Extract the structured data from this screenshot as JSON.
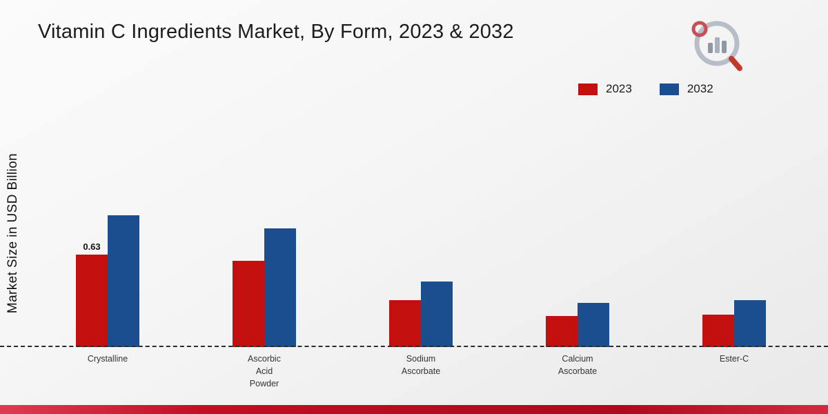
{
  "title": "Vitamin C Ingredients Market, By Form, 2023 & 2032",
  "ylabel": "Market Size in USD Billion",
  "legend": [
    {
      "label": "2023",
      "color": "#c3100f"
    },
    {
      "label": "2032",
      "color": "#1b4e8f"
    }
  ],
  "colors": {
    "series_2023": "#c3100f",
    "series_2032": "#1b4e8f",
    "footer_stripe": "#c30d24",
    "baseline": "#2b2b2b"
  },
  "chart_data": {
    "type": "bar",
    "title": "Vitamin C Ingredients Market, By Form, 2023 & 2032",
    "xlabel": "",
    "ylabel": "Market Size in USD Billion",
    "categories": [
      "Crystalline",
      "Ascorbic Acid Powder",
      "Sodium Ascorbate",
      "Calcium Ascorbate",
      "Ester-C"
    ],
    "category_lines": [
      [
        "Crystalline"
      ],
      [
        "Ascorbic",
        "Acid",
        "Powder"
      ],
      [
        "Sodium",
        "Ascorbate"
      ],
      [
        "Calcium",
        "Ascorbate"
      ],
      [
        "Ester-C"
      ]
    ],
    "series": [
      {
        "name": "2023",
        "color": "#c3100f",
        "values": [
          0.63,
          0.59,
          0.32,
          0.21,
          0.22
        ],
        "data_labels": [
          "0.63",
          null,
          null,
          null,
          null
        ]
      },
      {
        "name": "2032",
        "color": "#1b4e8f",
        "values": [
          0.9,
          0.81,
          0.45,
          0.3,
          0.32
        ],
        "data_labels": [
          null,
          null,
          null,
          null,
          null
        ]
      }
    ],
    "ylim": [
      0,
      1.0
    ],
    "grid": false,
    "legend_position": "top-right",
    "baseline_style": "dashed",
    "y_axis_ticks_visible": false
  }
}
